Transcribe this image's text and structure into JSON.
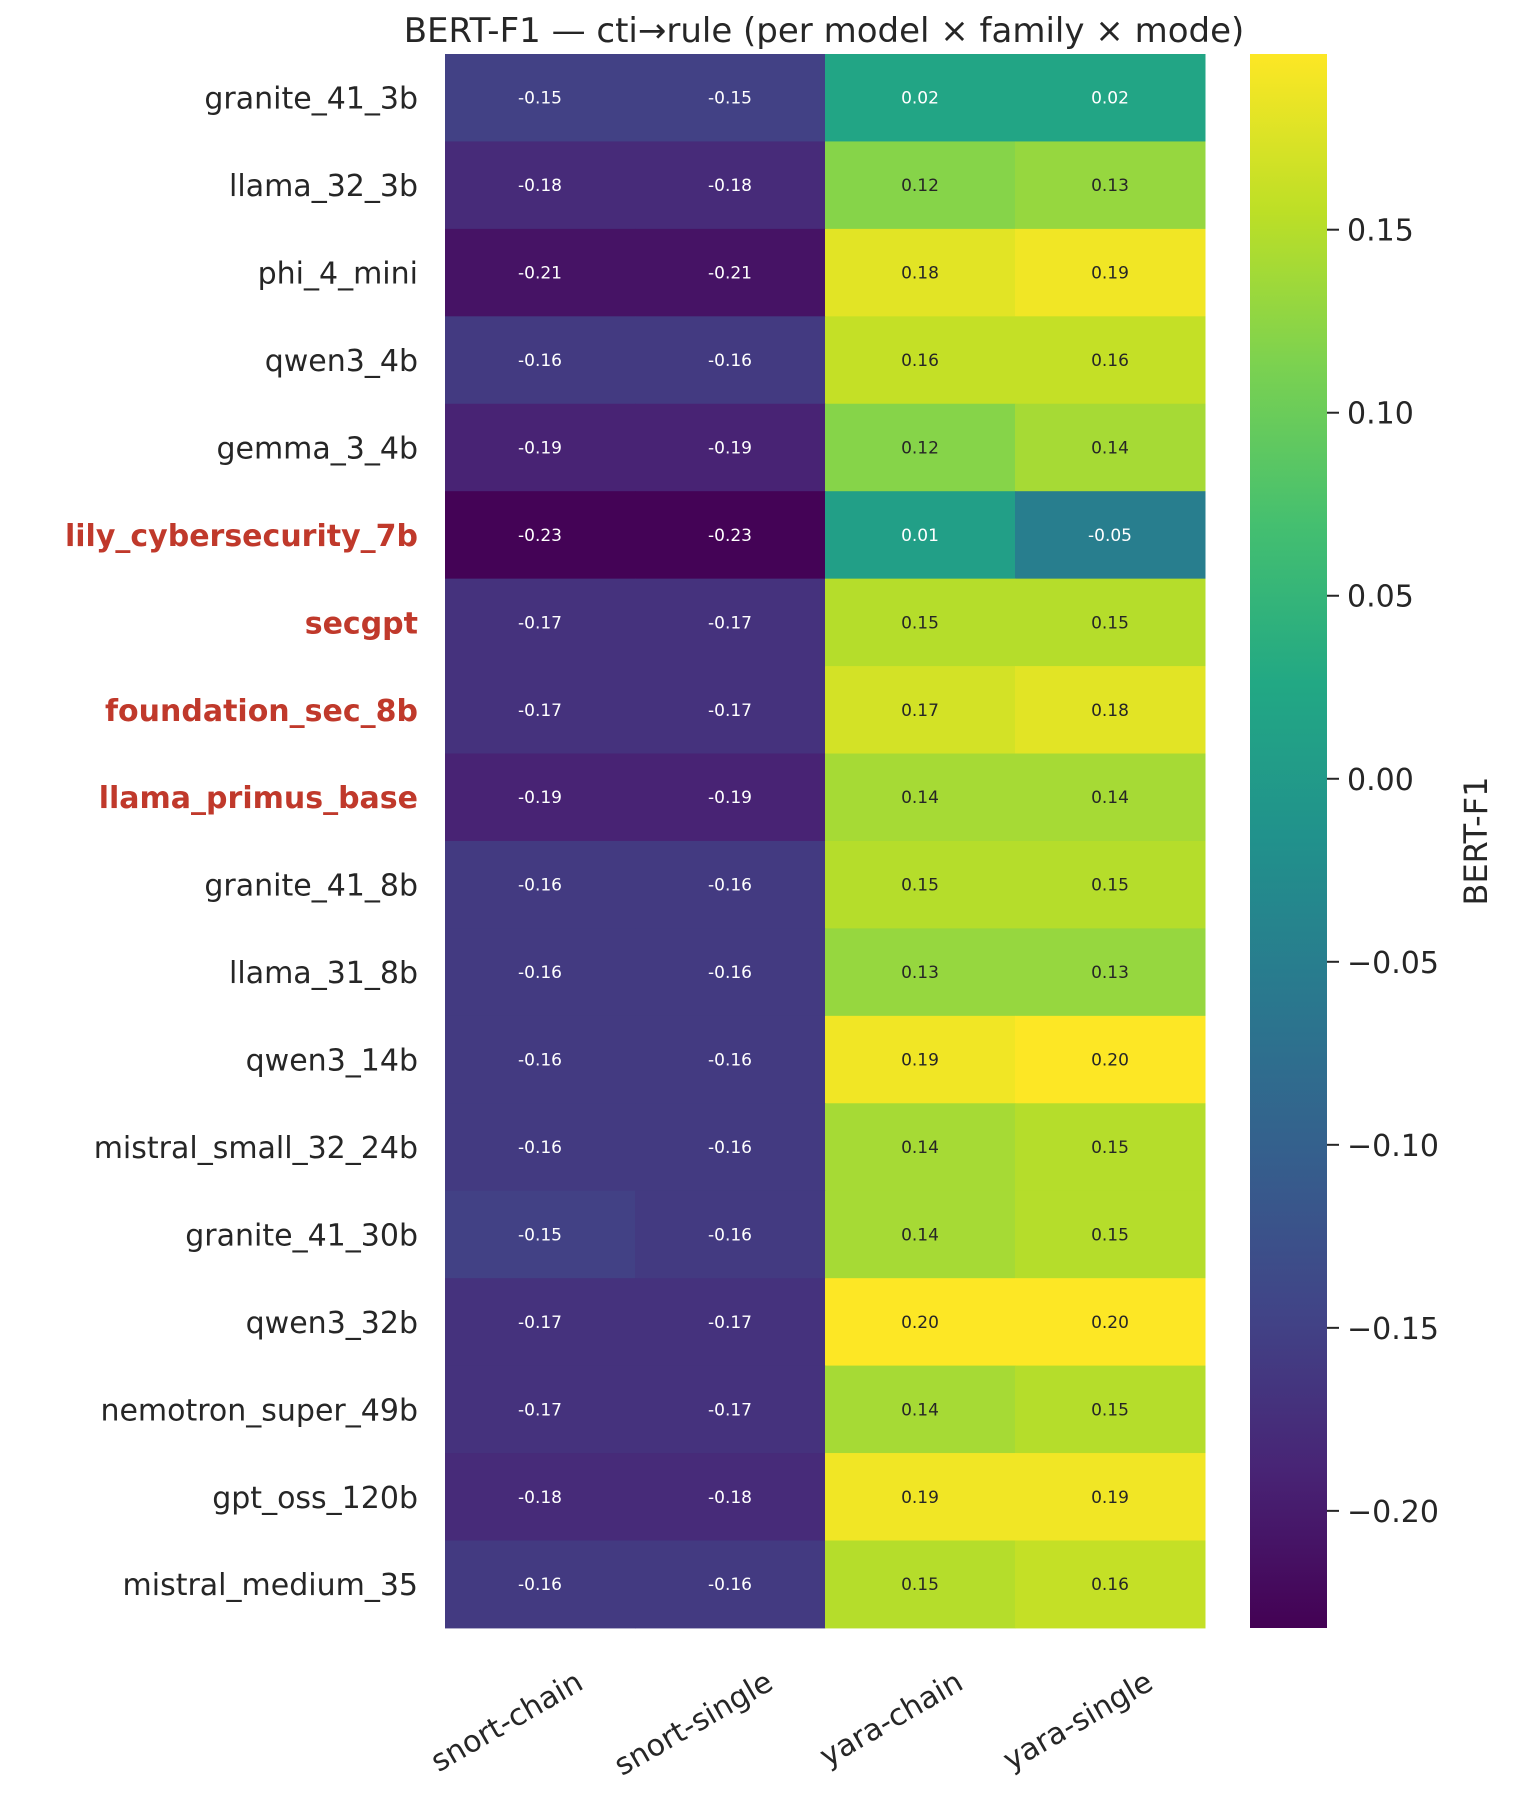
{
  "chart_data": {
    "type": "heatmap",
    "title": "BERT-F1  —  cti→rule  (per model × family × mode)",
    "columns": [
      "snort-chain",
      "snort-single",
      "yara-chain",
      "yara-single"
    ],
    "rows": [
      {
        "name": "granite_41_3b",
        "highlight": false,
        "values": [
          -0.15,
          -0.15,
          0.02,
          0.02
        ]
      },
      {
        "name": "llama_32_3b",
        "highlight": false,
        "values": [
          -0.18,
          -0.18,
          0.12,
          0.13
        ]
      },
      {
        "name": "phi_4_mini",
        "highlight": false,
        "values": [
          -0.21,
          -0.21,
          0.18,
          0.19
        ]
      },
      {
        "name": "qwen3_4b",
        "highlight": false,
        "values": [
          -0.16,
          -0.16,
          0.16,
          0.16
        ]
      },
      {
        "name": "gemma_3_4b",
        "highlight": false,
        "values": [
          -0.19,
          -0.19,
          0.12,
          0.14
        ]
      },
      {
        "name": "lily_cybersecurity_7b",
        "highlight": true,
        "values": [
          -0.23,
          -0.23,
          0.01,
          -0.05
        ]
      },
      {
        "name": "secgpt",
        "highlight": true,
        "values": [
          -0.17,
          -0.17,
          0.15,
          0.15
        ]
      },
      {
        "name": "foundation_sec_8b",
        "highlight": true,
        "values": [
          -0.17,
          -0.17,
          0.17,
          0.18
        ]
      },
      {
        "name": "llama_primus_base",
        "highlight": true,
        "values": [
          -0.19,
          -0.19,
          0.14,
          0.14
        ]
      },
      {
        "name": "granite_41_8b",
        "highlight": false,
        "values": [
          -0.16,
          -0.16,
          0.15,
          0.15
        ]
      },
      {
        "name": "llama_31_8b",
        "highlight": false,
        "values": [
          -0.16,
          -0.16,
          0.13,
          0.13
        ]
      },
      {
        "name": "qwen3_14b",
        "highlight": false,
        "values": [
          -0.16,
          -0.16,
          0.19,
          0.2
        ]
      },
      {
        "name": "mistral_small_32_24b",
        "highlight": false,
        "values": [
          -0.16,
          -0.16,
          0.14,
          0.15
        ]
      },
      {
        "name": "granite_41_30b",
        "highlight": false,
        "values": [
          -0.15,
          -0.16,
          0.14,
          0.15
        ]
      },
      {
        "name": "qwen3_32b",
        "highlight": false,
        "values": [
          -0.17,
          -0.17,
          0.2,
          0.2
        ]
      },
      {
        "name": "nemotron_super_49b",
        "highlight": false,
        "values": [
          -0.17,
          -0.17,
          0.14,
          0.15
        ]
      },
      {
        "name": "gpt_oss_120b",
        "highlight": false,
        "values": [
          -0.18,
          -0.18,
          0.19,
          0.19
        ]
      },
      {
        "name": "mistral_medium_35",
        "highlight": false,
        "values": [
          -0.16,
          -0.16,
          0.15,
          0.16
        ]
      }
    ],
    "colormap": "viridis",
    "vmin": -0.232,
    "vmax": 0.198,
    "colorbar": {
      "label": "BERT-F1",
      "ticks": [
        0.15,
        0.1,
        0.05,
        0.0,
        -0.05,
        -0.1,
        -0.15,
        -0.2
      ],
      "tick_labels": [
        "0.15",
        "0.10",
        "0.05",
        "0.00",
        "−0.05",
        "−0.10",
        "−0.15",
        "−0.20"
      ]
    },
    "highlight_color": "#c0392b",
    "annotation_format": "2 decimals"
  }
}
